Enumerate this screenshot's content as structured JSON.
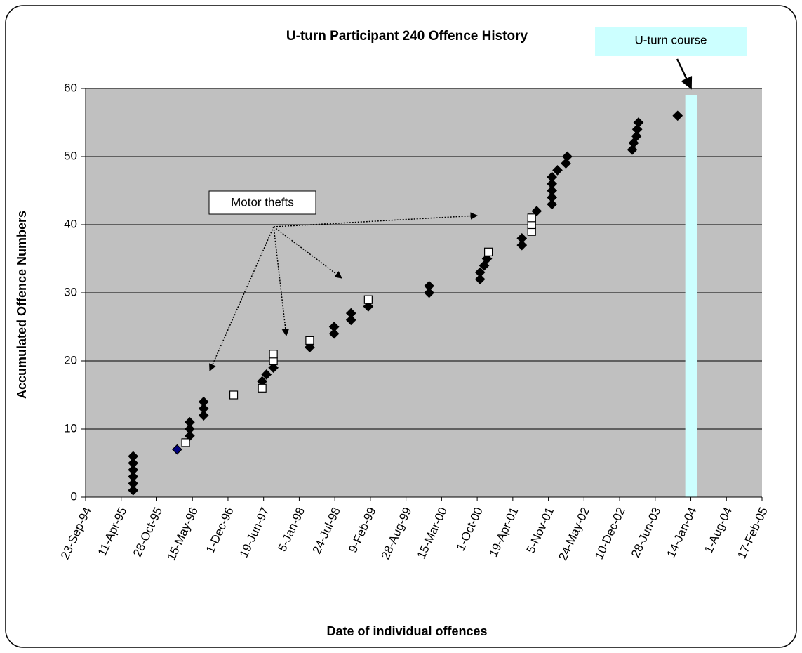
{
  "chart_data": {
    "type": "scatter",
    "title": "U-turn Participant 240 Offence History",
    "x_label": "Date of individual offences",
    "y_label": "Accumulated Offence Numbers",
    "xlim": [
      "1994-09-23",
      "2005-02-17"
    ],
    "xticks": [
      {
        "value": "1994-09-23",
        "label": "23-Sep-94"
      },
      {
        "value": "1995-04-11",
        "label": "11-Apr-95"
      },
      {
        "value": "1995-10-28",
        "label": "28-Oct-95"
      },
      {
        "value": "1996-05-15",
        "label": "15-May-96"
      },
      {
        "value": "1996-12-01",
        "label": "1-Dec-96"
      },
      {
        "value": "1997-06-19",
        "label": "19-Jun-97"
      },
      {
        "value": "1998-01-05",
        "label": "5-Jan-98"
      },
      {
        "value": "1998-07-24",
        "label": "24-Jul-98"
      },
      {
        "value": "1999-02-09",
        "label": "9-Feb-99"
      },
      {
        "value": "1999-08-28",
        "label": "28-Aug-99"
      },
      {
        "value": "2000-03-15",
        "label": "15-Mar-00"
      },
      {
        "value": "2000-10-01",
        "label": "1-Oct-00"
      },
      {
        "value": "2001-04-19",
        "label": "19-Apr-01"
      },
      {
        "value": "2001-11-05",
        "label": "5-Nov-01"
      },
      {
        "value": "2002-05-24",
        "label": "24-May-02"
      },
      {
        "value": "2002-12-10",
        "label": "10-Dec-02"
      },
      {
        "value": "2003-06-28",
        "label": "28-Jun-03"
      },
      {
        "value": "2004-01-14",
        "label": "14-Jan-04"
      },
      {
        "value": "2004-08-01",
        "label": "1-Aug-04"
      },
      {
        "value": "2005-02-17",
        "label": "17-Feb-05"
      }
    ],
    "ylim": [
      0,
      60
    ],
    "yticks": [
      0,
      10,
      20,
      30,
      40,
      50,
      60
    ],
    "grid": true,
    "background": "#c0c0c0",
    "series": [
      {
        "marker": "diamond",
        "color": "#000000",
        "x": [
          "1995-06-17",
          "1995-06-17",
          "1995-06-17",
          "1995-06-17",
          "1995-06-17",
          "1995-06-17",
          "1996-04-30",
          "1996-04-30",
          "1996-04-30",
          "1996-07-17",
          "1996-07-17",
          "1996-07-17",
          "1997-06-11",
          "1997-07-05",
          "1997-08-13",
          "1998-03-05",
          "1998-07-20",
          "1998-07-20",
          "1998-10-23",
          "1998-10-23",
          "1999-01-28",
          "2000-01-05",
          "2000-01-05",
          "2000-10-17",
          "2000-10-17",
          "2000-11-09",
          "2000-11-25",
          "2001-06-09",
          "2001-06-09",
          "2001-08-31",
          "2001-11-25",
          "2001-11-25",
          "2001-11-25",
          "2001-11-25",
          "2001-11-25",
          "2001-12-26",
          "2002-02-11",
          "2002-02-19",
          "2003-02-19",
          "2003-02-27",
          "2003-03-15",
          "2003-03-19",
          "2003-03-26",
          "2003-11-01"
        ],
        "values": [
          1,
          2,
          3,
          4,
          5,
          6,
          9,
          10,
          11,
          12,
          13,
          14,
          17,
          18,
          19,
          22,
          24,
          25,
          26,
          27,
          28,
          30,
          31,
          32,
          33,
          34,
          35,
          37,
          38,
          42,
          43,
          44,
          45,
          46,
          47,
          48,
          49,
          50,
          51,
          52,
          53,
          54,
          55,
          56
        ]
      },
      {
        "marker": "square",
        "color": "#ffffff",
        "x": [
          "1996-04-07",
          "1997-01-02",
          "1997-06-11",
          "1997-08-13",
          "1997-08-13",
          "1998-03-05",
          "1999-01-28",
          "2000-12-03",
          "2001-08-03",
          "2001-08-03",
          "2001-08-03"
        ],
        "values": [
          8,
          15,
          16,
          20,
          21,
          23,
          29,
          36,
          39,
          40,
          41
        ]
      },
      {
        "marker": "diamond",
        "color": "#000080",
        "x": [
          "1996-02-19"
        ],
        "values": [
          7
        ]
      }
    ],
    "course_bar": {
      "label": "U-turn course",
      "color": "#ccffff",
      "x_start": "2003-12-14",
      "x_end": "2004-02-18",
      "value": 59
    },
    "annotation": "Motor thefts"
  }
}
